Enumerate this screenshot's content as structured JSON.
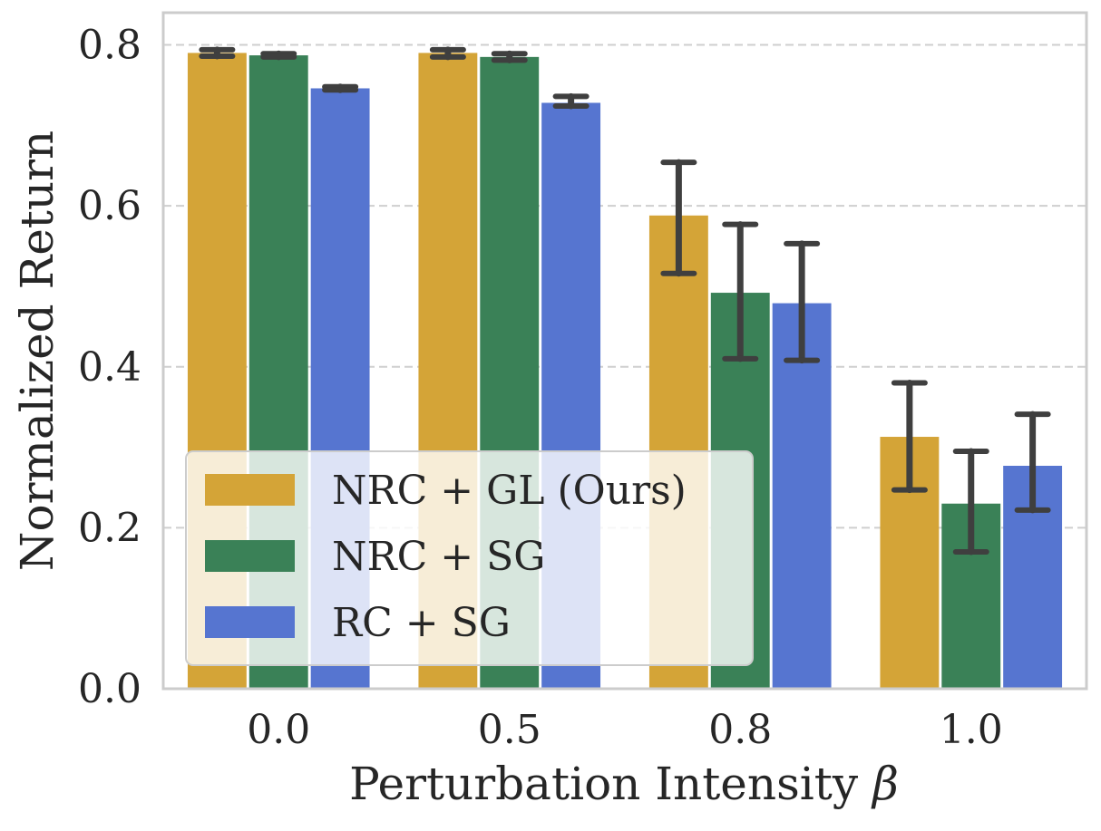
{
  "chart_data": {
    "type": "bar",
    "title": "",
    "xlabel": "Perturbation Intensity",
    "xlabel_symbol": "β",
    "ylabel": "Normalized Return",
    "categories": [
      "0.0",
      "0.5",
      "0.8",
      "1.0"
    ],
    "ylim": [
      0.0,
      0.84
    ],
    "yticks": [
      "0.0",
      "0.2",
      "0.4",
      "0.6",
      "0.8"
    ],
    "grid": true,
    "legend_position": "lower-left",
    "series": [
      {
        "name": "NRC + GL (Ours)",
        "color": "#D4A437",
        "values": [
          0.79,
          0.79,
          0.588,
          0.313
        ],
        "err_low": [
          0.786,
          0.785,
          0.516,
          0.247
        ],
        "err_high": [
          0.794,
          0.794,
          0.654,
          0.38
        ]
      },
      {
        "name": "NRC + SG",
        "color": "#3A8157",
        "values": [
          0.787,
          0.785,
          0.492,
          0.23
        ],
        "err_low": [
          0.785,
          0.781,
          0.41,
          0.17
        ],
        "err_high": [
          0.789,
          0.789,
          0.577,
          0.295
        ]
      },
      {
        "name": "RC + SG",
        "color": "#5675D0",
        "values": [
          0.746,
          0.728,
          0.479,
          0.277
        ],
        "err_low": [
          0.744,
          0.724,
          0.408,
          0.222
        ],
        "err_high": [
          0.748,
          0.736,
          0.553,
          0.341
        ]
      }
    ]
  }
}
